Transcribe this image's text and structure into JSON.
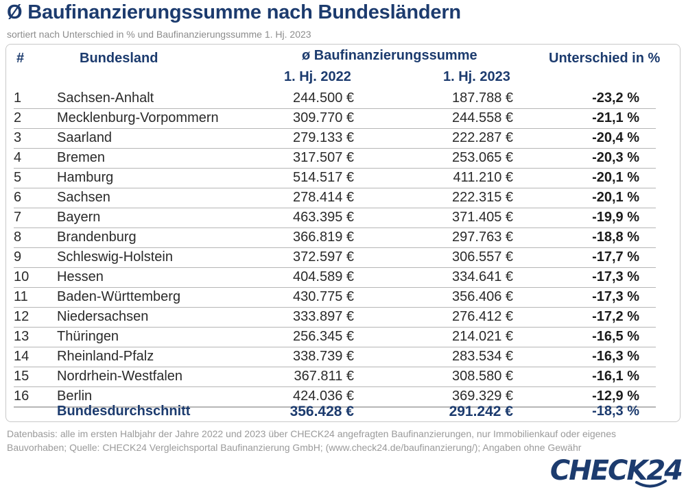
{
  "title": "Ø Baufinanzierungssumme nach Bundesländern",
  "subtitle": "sortiert nach Unterschied in % und Baufinanzierungssumme 1. Hj. 2023",
  "header": {
    "num": "#",
    "land": "Bundesland",
    "group": "ø Baufinanzierungssumme",
    "y2022": "1. Hj. 2022",
    "y2023": "1. Hj. 2023",
    "diff": "Unterschied in %"
  },
  "rows": [
    {
      "num": "1",
      "land": "Sachsen-Anhalt",
      "y2022": "244.500 €",
      "y2023": "187.788 €",
      "diff": "-23,2 %"
    },
    {
      "num": "2",
      "land": "Mecklenburg-Vorpommern",
      "y2022": "309.770 €",
      "y2023": "244.558 €",
      "diff": "-21,1 %"
    },
    {
      "num": "3",
      "land": "Saarland",
      "y2022": "279.133 €",
      "y2023": "222.287 €",
      "diff": "-20,4 %"
    },
    {
      "num": "4",
      "land": "Bremen",
      "y2022": "317.507 €",
      "y2023": "253.065 €",
      "diff": "-20,3 %"
    },
    {
      "num": "5",
      "land": "Hamburg",
      "y2022": "514.517 €",
      "y2023": "411.210 €",
      "diff": "-20,1 %"
    },
    {
      "num": "6",
      "land": "Sachsen",
      "y2022": "278.414 €",
      "y2023": "222.315 €",
      "diff": "-20,1 %"
    },
    {
      "num": "7",
      "land": "Bayern",
      "y2022": "463.395 €",
      "y2023": "371.405 €",
      "diff": "-19,9 %"
    },
    {
      "num": "8",
      "land": "Brandenburg",
      "y2022": "366.819 €",
      "y2023": "297.763 €",
      "diff": "-18,8 %"
    },
    {
      "num": "9",
      "land": "Schleswig-Holstein",
      "y2022": "372.597 €",
      "y2023": "306.557 €",
      "diff": "-17,7 %"
    },
    {
      "num": "10",
      "land": "Hessen",
      "y2022": "404.589 €",
      "y2023": "334.641 €",
      "diff": "-17,3 %"
    },
    {
      "num": "11",
      "land": "Baden-Württemberg",
      "y2022": "430.775 €",
      "y2023": "356.406 €",
      "diff": "-17,3 %"
    },
    {
      "num": "12",
      "land": "Niedersachsen",
      "y2022": "333.897 €",
      "y2023": "276.412 €",
      "diff": "-17,2 %"
    },
    {
      "num": "13",
      "land": "Thüringen",
      "y2022": "256.345 €",
      "y2023": "214.021 €",
      "diff": "-16,5 %"
    },
    {
      "num": "14",
      "land": "Rheinland-Pfalz",
      "y2022": "338.739 €",
      "y2023": "283.534 €",
      "diff": "-16,3 %"
    },
    {
      "num": "15",
      "land": "Nordrhein-Westfalen",
      "y2022": "367.811 €",
      "y2023": "308.580 €",
      "diff": "-16,1 %"
    },
    {
      "num": "16",
      "land": "Berlin",
      "y2022": "424.036 €",
      "y2023": "369.329 €",
      "diff": "-12,9 %"
    }
  ],
  "average": {
    "land": "Bundesdurchschnitt",
    "y2022": "356.428 €",
    "y2023": "291.242 €",
    "diff": "-18,3 %"
  },
  "footnote": "Datenbasis: alle im ersten Halbjahr der Jahre 2022 und 2023 über CHECK24 angefragten Baufinanzierungen,  nur Immobilienkauf oder eigenes Bauvorhaben; Quelle: CHECK24 Vergleichsportal Baufinanzierung GmbH; (www.check24.de/baufinanzierung/); Angaben ohne Gewähr",
  "logo": "CHECK24",
  "colors": {
    "brand": "#1c3b6e",
    "muted": "#9a9a9a"
  }
}
